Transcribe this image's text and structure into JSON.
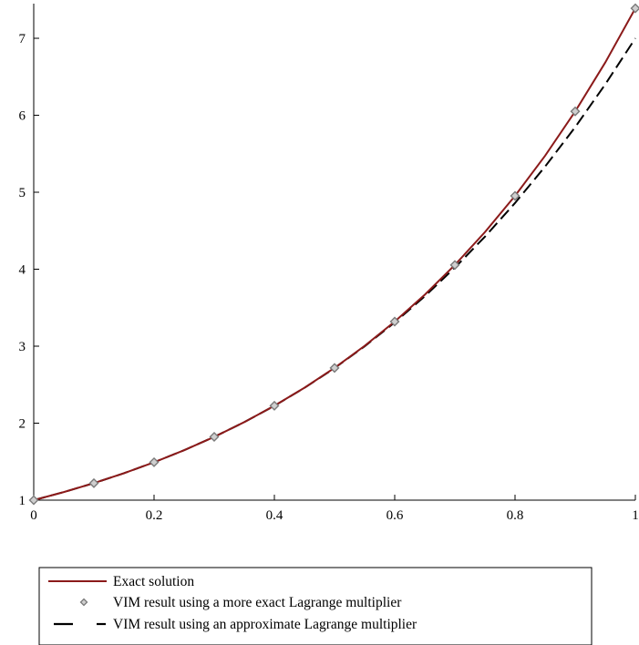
{
  "chart_data": {
    "type": "line",
    "title": "",
    "xlabel": "",
    "ylabel": "",
    "xlim": [
      0,
      1
    ],
    "ylim": [
      1,
      7.45
    ],
    "x_ticks": [
      0,
      0.2,
      0.4,
      0.6,
      0.8,
      1
    ],
    "x_tick_labels": [
      "0",
      "0.2",
      "0.4",
      "0.6",
      "0.8",
      "1"
    ],
    "y_ticks": [
      1,
      2,
      3,
      4,
      5,
      6,
      7
    ],
    "y_tick_labels": [
      "1",
      "2",
      "3",
      "4",
      "5",
      "6",
      "7"
    ],
    "grid": false,
    "legend_position": "bottom",
    "series": [
      {
        "name": "Exact solution",
        "style": "solid-line",
        "color": "#8b1a1a",
        "x": [
          0,
          0.05,
          0.1,
          0.15,
          0.2,
          0.25,
          0.3,
          0.35,
          0.4,
          0.45,
          0.5,
          0.55,
          0.6,
          0.65,
          0.7,
          0.75,
          0.8,
          0.85,
          0.9,
          0.95,
          1
        ],
        "y": [
          1.0,
          1.105,
          1.221,
          1.35,
          1.492,
          1.649,
          1.822,
          2.014,
          2.226,
          2.46,
          2.718,
          3.004,
          3.32,
          3.669,
          4.055,
          4.482,
          4.953,
          5.474,
          6.05,
          6.686,
          7.389
        ]
      },
      {
        "name": "VIM result using a more exact Lagrange multiplier",
        "style": "diamond-points",
        "color": "#7a7a7a",
        "x": [
          0,
          0.1,
          0.2,
          0.3,
          0.4,
          0.5,
          0.6,
          0.7,
          0.8,
          0.9,
          1
        ],
        "y": [
          1.0,
          1.221,
          1.492,
          1.822,
          2.226,
          2.718,
          3.32,
          4.055,
          4.953,
          6.05,
          7.389
        ]
      },
      {
        "name": "VIM result using an approximate Lagrange multiplier",
        "style": "dashed-line",
        "color": "#000000",
        "x": [
          0,
          0.05,
          0.1,
          0.15,
          0.2,
          0.25,
          0.3,
          0.35,
          0.4,
          0.45,
          0.5,
          0.55,
          0.6,
          0.65,
          0.7,
          0.75,
          0.8,
          0.85,
          0.9,
          0.95,
          1
        ],
        "y": [
          1.0,
          1.105,
          1.221,
          1.35,
          1.492,
          1.649,
          1.822,
          2.014,
          2.225,
          2.459,
          2.715,
          2.998,
          3.309,
          3.649,
          4.02,
          4.423,
          4.86,
          5.334,
          5.846,
          6.402,
          7.0
        ]
      }
    ]
  }
}
